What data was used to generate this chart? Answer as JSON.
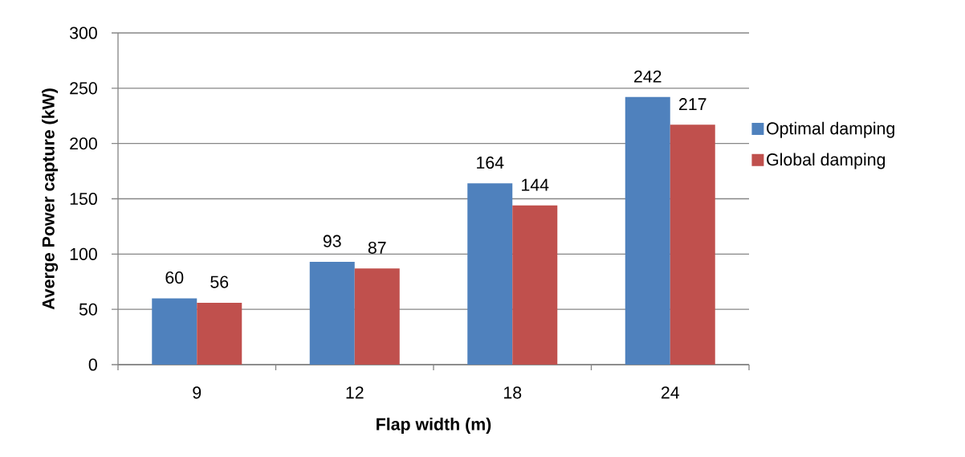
{
  "chart_data": {
    "type": "bar",
    "xlabel": "Flap width (m)",
    "ylabel": "Averge Power capture (kW)",
    "categories": [
      "9",
      "12",
      "18",
      "24"
    ],
    "series": [
      {
        "name": "Optimal damping",
        "color": "#4f81bd",
        "values": [
          60,
          93,
          164,
          242
        ]
      },
      {
        "name": "Global damping",
        "color": "#c0504d",
        "values": [
          56,
          87,
          144,
          217
        ]
      }
    ],
    "ylim": [
      0,
      300
    ],
    "yticks": [
      0,
      50,
      100,
      150,
      200,
      250,
      300
    ],
    "grid": "y",
    "legend": "right",
    "data_labels": true
  }
}
